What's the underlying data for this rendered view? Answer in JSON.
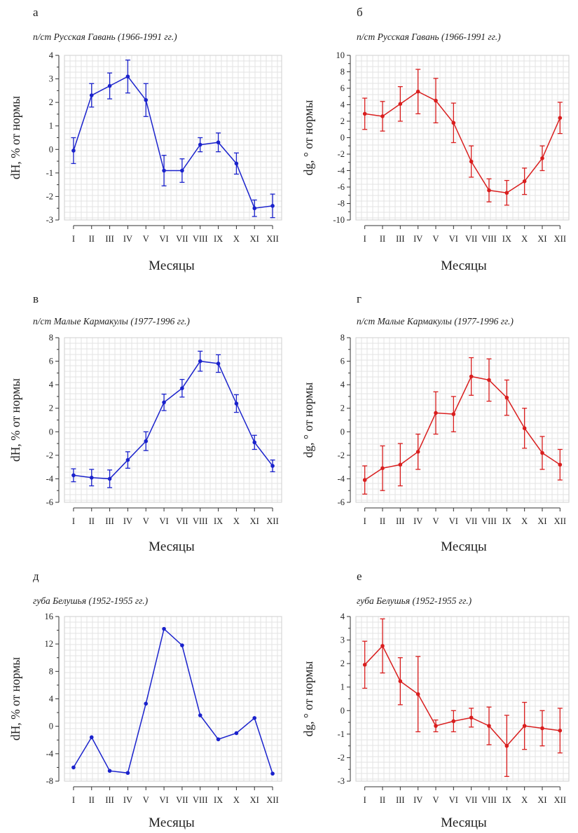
{
  "chart_data": [
    {
      "type": "line",
      "panel_letter": "а",
      "title": "п/ст Русская Гавань (1966-1991 гг.)",
      "xlabel": "Месяцы",
      "ylabel": "dH, % от нормы",
      "categories": [
        "I",
        "II",
        "III",
        "IV",
        "V",
        "VI",
        "VII",
        "VIII",
        "IX",
        "X",
        "XI",
        "XII"
      ],
      "ylim": [
        -3,
        4
      ],
      "yticks": [
        4,
        3,
        2,
        1,
        0,
        -1,
        -2,
        -3
      ],
      "grid": true,
      "color": "#1a22cc",
      "series": [
        {
          "values": [
            -0.05,
            2.3,
            2.7,
            3.1,
            2.1,
            -0.9,
            -0.9,
            0.2,
            0.3,
            -0.6,
            -2.5,
            -2.4
          ],
          "error": [
            0.55,
            0.5,
            0.55,
            0.7,
            0.7,
            0.65,
            0.5,
            0.3,
            0.4,
            0.45,
            0.35,
            0.5
          ]
        }
      ]
    },
    {
      "type": "line",
      "panel_letter": "б",
      "title": "п/ст Русская Гавань (1966-1991 гг.)",
      "xlabel": "Месяцы",
      "ylabel": "dg, ° от нормы",
      "categories": [
        "I",
        "II",
        "III",
        "IV",
        "V",
        "VI",
        "VII",
        "VIII",
        "IX",
        "X",
        "XI",
        "XII"
      ],
      "ylim": [
        -10,
        10
      ],
      "yticks": [
        10,
        8,
        6,
        4,
        2,
        0,
        -2,
        -4,
        -6,
        -8,
        -10
      ],
      "grid": true,
      "color": "#d91e1e",
      "series": [
        {
          "values": [
            2.9,
            2.6,
            4.1,
            5.6,
            4.5,
            1.8,
            -2.9,
            -6.4,
            -6.7,
            -5.3,
            -2.5,
            2.4
          ],
          "error": [
            1.9,
            1.8,
            2.1,
            2.7,
            2.7,
            2.4,
            1.9,
            1.4,
            1.5,
            1.6,
            1.5,
            1.9
          ]
        }
      ]
    },
    {
      "type": "line",
      "panel_letter": "в",
      "title": "п/ст Малые Кармакулы (1977-1996 гг.)",
      "xlabel": "Месяцы",
      "ylabel": "dH, % от нормы",
      "categories": [
        "I",
        "II",
        "III",
        "IV",
        "V",
        "VI",
        "VII",
        "VIII",
        "IX",
        "X",
        "XI",
        "XII"
      ],
      "ylim": [
        -6,
        8
      ],
      "yticks": [
        8,
        6,
        4,
        2,
        0,
        -2,
        -4,
        -6
      ],
      "grid": true,
      "color": "#1a22cc",
      "series": [
        {
          "values": [
            -3.7,
            -3.9,
            -4.0,
            -2.4,
            -0.8,
            2.5,
            3.7,
            6.0,
            5.8,
            2.4,
            -0.9,
            -2.9
          ],
          "error": [
            0.55,
            0.7,
            0.75,
            0.7,
            0.8,
            0.7,
            0.75,
            0.85,
            0.75,
            0.75,
            0.6,
            0.5
          ]
        }
      ]
    },
    {
      "type": "line",
      "panel_letter": "г",
      "title": "п/ст Малые Кармакулы (1977-1996 гг.)",
      "xlabel": "Месяцы",
      "ylabel": "dg, ° от нормы",
      "categories": [
        "I",
        "II",
        "III",
        "IV",
        "V",
        "VI",
        "VII",
        "VIII",
        "IX",
        "X",
        "XI",
        "XII"
      ],
      "ylim": [
        -6,
        8
      ],
      "yticks": [
        8,
        6,
        4,
        2,
        0,
        -2,
        -4,
        -6
      ],
      "grid": true,
      "color": "#d91e1e",
      "series": [
        {
          "values": [
            -4.1,
            -3.1,
            -2.8,
            -1.7,
            1.6,
            1.5,
            4.7,
            4.4,
            2.9,
            0.3,
            -1.8,
            -2.8
          ],
          "error": [
            1.2,
            1.9,
            1.8,
            1.5,
            1.8,
            1.5,
            1.6,
            1.8,
            1.5,
            1.7,
            1.4,
            1.3
          ]
        }
      ]
    },
    {
      "type": "line",
      "panel_letter": "д",
      "title": "губа Белушья (1952-1955 гг.)",
      "xlabel": "Месяцы",
      "ylabel": "dH, % от нормы",
      "categories": [
        "I",
        "II",
        "III",
        "IV",
        "V",
        "VI",
        "VII",
        "VIII",
        "IX",
        "X",
        "XI",
        "XII"
      ],
      "ylim": [
        -8,
        16
      ],
      "yticks": [
        16,
        12,
        8,
        4,
        0,
        -4,
        -8
      ],
      "ytick_labels": [
        "16",
        "12",
        "8",
        "4",
        "0",
        "-4",
        "-8"
      ],
      "grid": true,
      "color": "#1a22cc",
      "series": [
        {
          "values": [
            -6.0,
            -1.6,
            -6.5,
            -6.8,
            3.3,
            14.2,
            11.8,
            1.6,
            -1.9,
            -1.0,
            1.2,
            -6.9
          ]
        }
      ]
    },
    {
      "type": "line",
      "panel_letter": "е",
      "title": "губа Белушья (1952-1955 гг.)",
      "xlabel": "Месяцы",
      "ylabel": "dg, ° от нормы",
      "categories": [
        "I",
        "II",
        "III",
        "IV",
        "V",
        "VI",
        "VII",
        "VIII",
        "IX",
        "X",
        "XI",
        "XII"
      ],
      "ylim": [
        -3,
        4
      ],
      "yticks": [
        4,
        3,
        2,
        1,
        0,
        -1,
        -2,
        -3
      ],
      "grid": true,
      "color": "#d91e1e",
      "series": [
        {
          "values": [
            1.95,
            2.75,
            1.25,
            0.7,
            -0.65,
            -0.45,
            -0.3,
            -0.65,
            -1.5,
            -0.65,
            -0.75,
            -0.85
          ],
          "error": [
            1.0,
            1.15,
            1.0,
            1.6,
            0.25,
            0.45,
            0.4,
            0.8,
            1.3,
            1.0,
            0.75,
            0.95
          ]
        }
      ]
    }
  ]
}
